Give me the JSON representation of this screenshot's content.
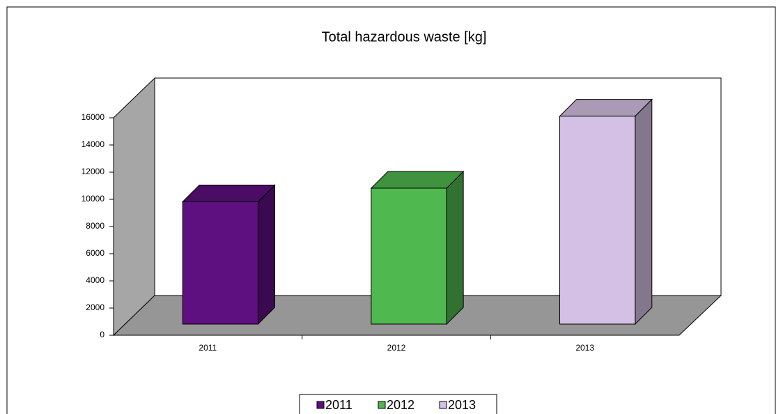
{
  "chart_data": {
    "type": "bar",
    "title": "Total hazardous waste [kg]",
    "categories": [
      "2011",
      "2012",
      "2013"
    ],
    "values": [
      9000,
      10000,
      15300
    ],
    "colors": [
      "#5e0f80",
      "#4fb84f",
      "#d4c0e4"
    ],
    "ylim": [
      0,
      16000
    ],
    "yticks": [
      0,
      2000,
      4000,
      6000,
      8000,
      10000,
      12000,
      14000,
      16000
    ],
    "legend": "bottom"
  }
}
